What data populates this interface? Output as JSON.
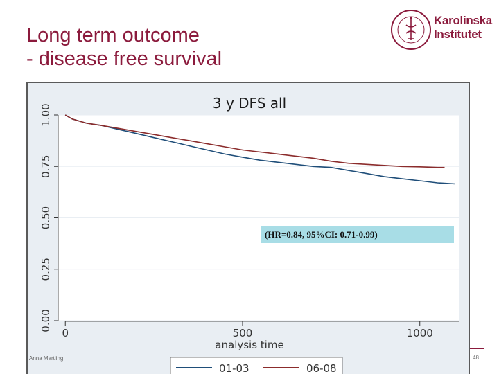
{
  "slide": {
    "title_line1": "Long term outcome",
    "title_line2": "- disease free survival",
    "footer_author": "Anna Martling",
    "page_number": "48"
  },
  "logo": {
    "line1": "Karolinska",
    "line2": "Institutet",
    "seal_text": "KAROLINSKA INSTITUTET ANNO 1810",
    "color": "#8b1a3c"
  },
  "annotation": {
    "text": "(HR=0.84, 95%CI: 0.71-0.99)"
  },
  "chart_data": {
    "type": "line",
    "title": "3 y DFS all",
    "xlabel": "analysis time",
    "ylabel": "",
    "xlim": [
      -20,
      1110
    ],
    "ylim": [
      0,
      1
    ],
    "x_ticks": [
      0,
      500,
      1000
    ],
    "x_tick_labels": [
      "0",
      "500",
      "1000"
    ],
    "y_ticks": [
      0,
      0.25,
      0.5,
      0.75,
      1.0
    ],
    "y_tick_labels": [
      "0.00",
      "0.25",
      "0.50",
      "0.75",
      "1.00"
    ],
    "grid": "horizontal",
    "legend_position": "bottom",
    "series": [
      {
        "name": "01-03",
        "color": "#1f4e79",
        "x": [
          0,
          20,
          40,
          60,
          80,
          100,
          150,
          200,
          250,
          300,
          350,
          400,
          450,
          500,
          550,
          600,
          650,
          700,
          750,
          800,
          850,
          900,
          950,
          1000,
          1050,
          1100
        ],
        "y": [
          1.0,
          0.98,
          0.97,
          0.96,
          0.955,
          0.95,
          0.93,
          0.91,
          0.89,
          0.87,
          0.85,
          0.83,
          0.81,
          0.795,
          0.78,
          0.77,
          0.76,
          0.75,
          0.745,
          0.73,
          0.715,
          0.7,
          0.69,
          0.68,
          0.67,
          0.665
        ]
      },
      {
        "name": "06-08",
        "color": "#8b2c2c",
        "x": [
          0,
          20,
          40,
          60,
          80,
          100,
          150,
          200,
          250,
          300,
          350,
          400,
          450,
          500,
          550,
          600,
          650,
          700,
          750,
          800,
          850,
          900,
          950,
          1000,
          1050,
          1070
        ],
        "y": [
          1.0,
          0.98,
          0.97,
          0.96,
          0.955,
          0.95,
          0.935,
          0.92,
          0.905,
          0.89,
          0.875,
          0.86,
          0.845,
          0.83,
          0.82,
          0.81,
          0.8,
          0.79,
          0.775,
          0.765,
          0.76,
          0.755,
          0.75,
          0.748,
          0.745,
          0.745
        ]
      }
    ]
  }
}
